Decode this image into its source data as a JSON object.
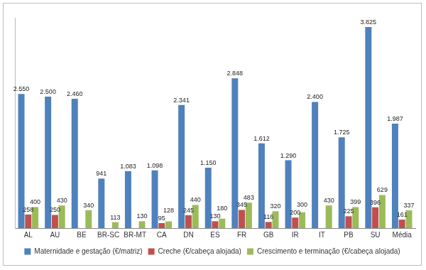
{
  "chart_data": {
    "type": "bar",
    "categories": [
      "AL",
      "AU",
      "BE",
      "BR-SC",
      "BR-MT",
      "CA",
      "DN",
      "ES",
      "FR",
      "GB",
      "IR",
      "IT",
      "PB",
      "SU",
      "Média"
    ],
    "series": [
      {
        "name": "Maternidade e gestação (€/matriz)",
        "color": "#4f81bd",
        "values": [
          2550,
          2500,
          2460,
          941,
          1083,
          1098,
          2341,
          1150,
          2848,
          1612,
          1290,
          2400,
          1725,
          3825,
          1987
        ],
        "value_labels": [
          "2.550",
          "2.500",
          "2.460",
          "941",
          "1.083",
          "1.098",
          "2.341",
          "1.150",
          "2.848",
          "1.612",
          "1.290",
          "2.400",
          "1.725",
          "3.825",
          "1.987"
        ]
      },
      {
        "name": "Creche (€/cabeça alojada)",
        "color": "#c0504d",
        "values": [
          258,
          250,
          null,
          null,
          null,
          95,
          245,
          130,
          345,
          116,
          200,
          null,
          225,
          396,
          161
        ]
      },
      {
        "name": "Crescimento e terminação (€/cabeça alojada)",
        "color": "#9bbb59",
        "values": [
          400,
          430,
          340,
          113,
          130,
          128,
          440,
          180,
          483,
          320,
          300,
          430,
          399,
          629,
          337
        ]
      }
    ],
    "ylim": [
      0,
      4000
    ],
    "grid": false,
    "legend": "bottom",
    "data_labels": true,
    "tick_labels": "x"
  }
}
